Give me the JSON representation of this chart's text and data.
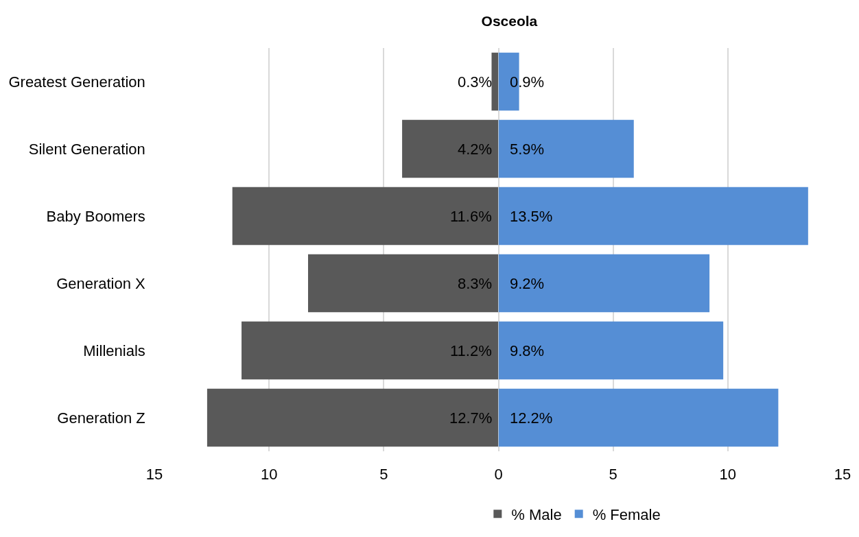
{
  "chart_data": [
    {
      "type": "bar",
      "title": "Osceola",
      "orientation": "horizontal",
      "categories": [
        "Greatest Generation",
        "Silent Generation",
        "Baby Boomers",
        "Generation X",
        "Millenials",
        "Generation Z"
      ],
      "series": [
        {
          "name": "% Male",
          "color": "#595959",
          "values": [
            0.3,
            4.2,
            11.6,
            8.3,
            11.2,
            12.7
          ],
          "value_labels": [
            "0.3%",
            "4.2%",
            "11.6%",
            "8.3%",
            "11.2%",
            "12.7%"
          ]
        }
      ],
      "xlim": [
        15,
        0
      ],
      "xticks": [
        15,
        10,
        5,
        0
      ],
      "grid": "x",
      "legend": "bottom"
    },
    {
      "type": "bar",
      "orientation": "horizontal",
      "categories": [
        "Greatest Generation",
        "Silent Generation",
        "Baby Boomers",
        "Generation X",
        "Millenials",
        "Generation Z"
      ],
      "series": [
        {
          "name": "% Female",
          "color": "#558ed5",
          "values": [
            0.9,
            5.9,
            13.5,
            9.2,
            9.8,
            12.2
          ],
          "value_labels": [
            "0.9%",
            "5.9%",
            "13.5%",
            "9.2%",
            "9.8%",
            "12.2%"
          ]
        }
      ],
      "xlim": [
        0,
        15
      ],
      "xticks": [
        {
          "value": 0,
          "label": null
        },
        5,
        10,
        15
      ],
      "grid": "x",
      "legend": "bottom",
      "tick_labels": "x"
    }
  ]
}
